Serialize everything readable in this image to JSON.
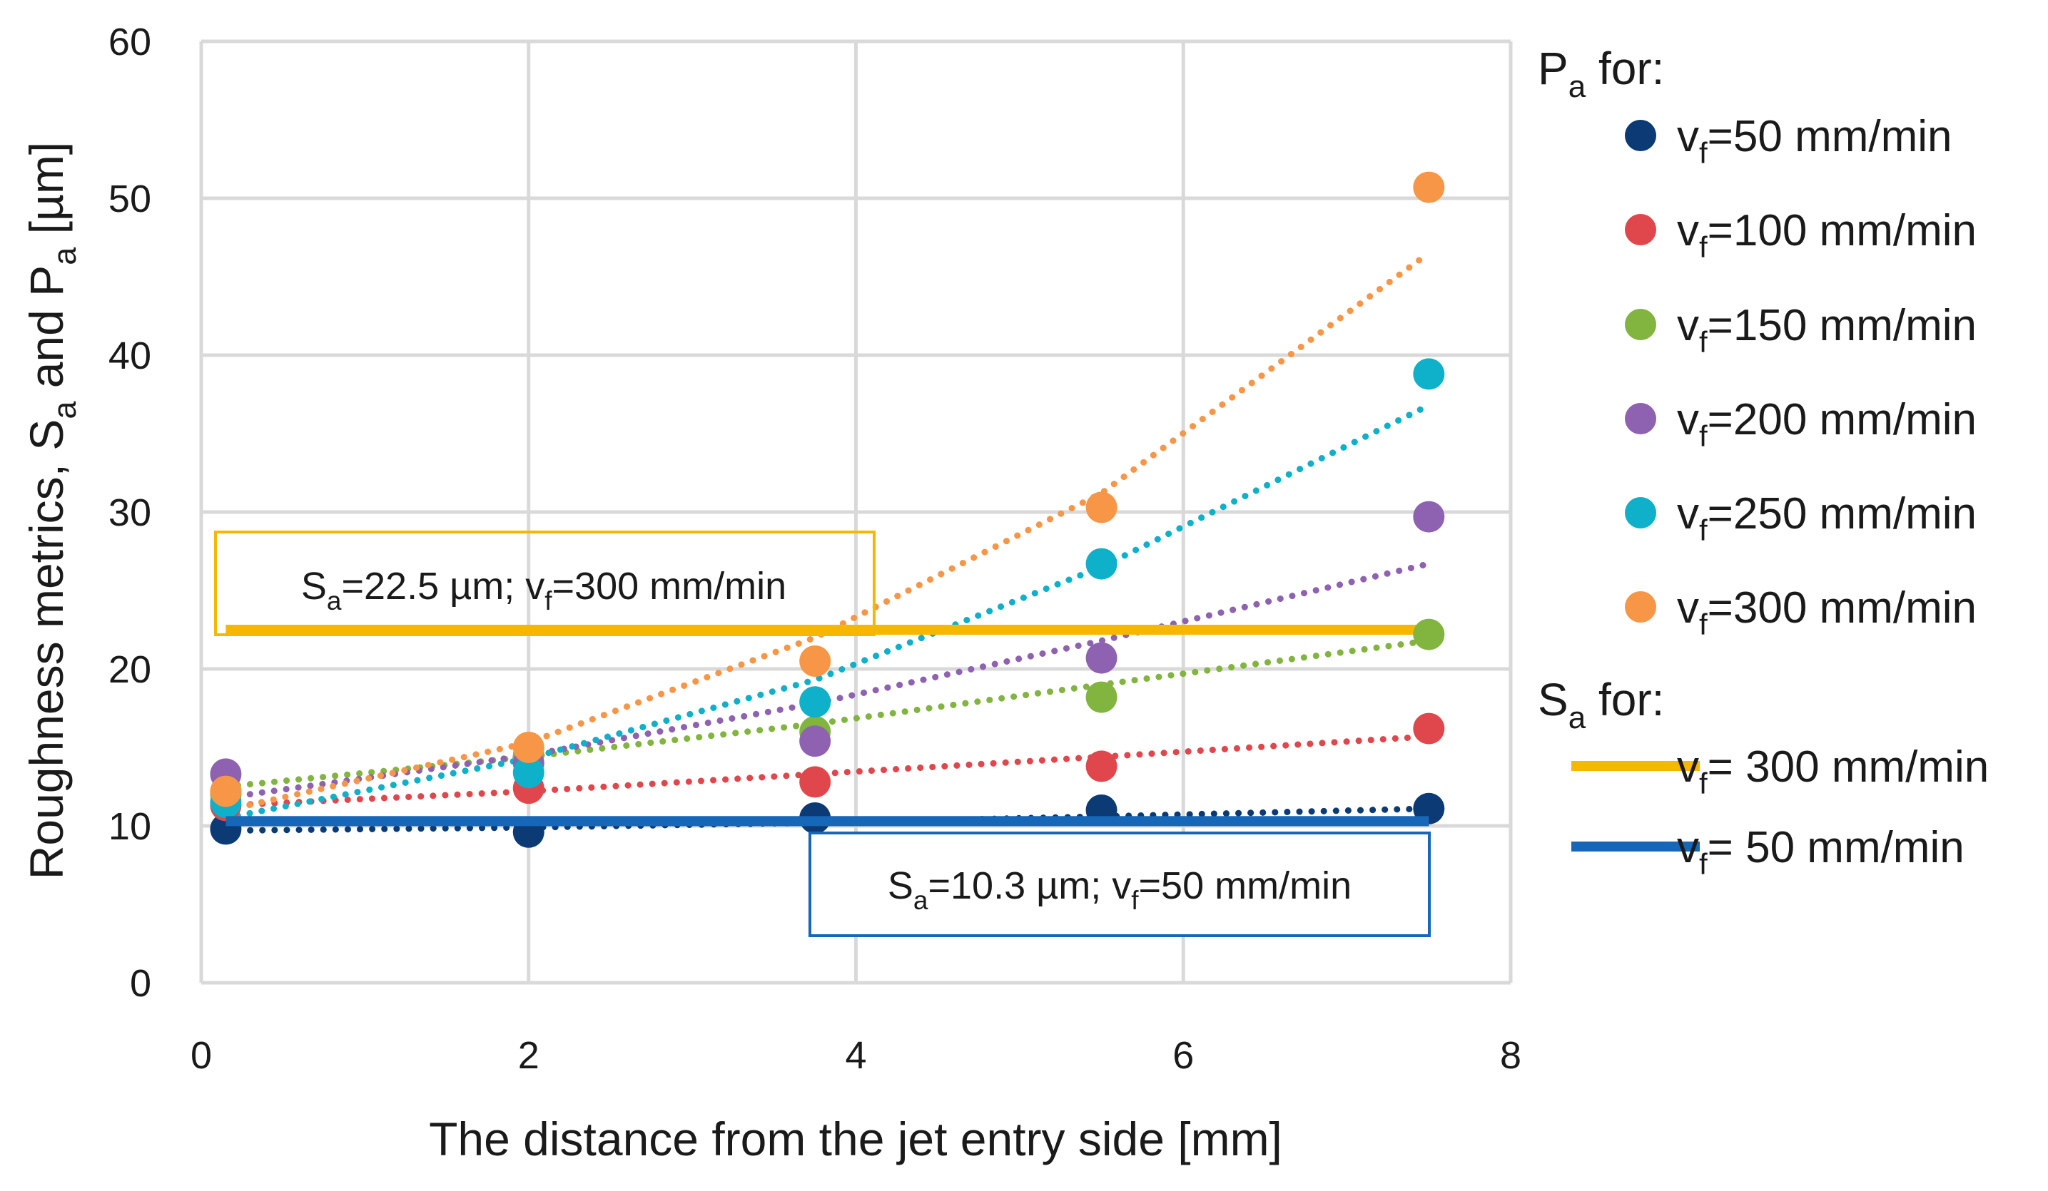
{
  "chart_data": {
    "type": "scatter",
    "xlabel": "The distance from the jet entry side [mm]",
    "ylabel": {
      "main": "Roughness metrics, S",
      "sub1": "a",
      "mid": " and P",
      "sub2": "a",
      "unit": " [µm]"
    },
    "xlim": [
      0,
      8
    ],
    "ylim": [
      0,
      60
    ],
    "x_ticks": [
      "0",
      "2",
      "4",
      "6",
      "8"
    ],
    "y_ticks": [
      "0",
      "10",
      "20",
      "30",
      "40",
      "50",
      "60"
    ],
    "grid": true,
    "x": [
      0.15,
      2.0,
      3.75,
      5.5,
      7.5
    ],
    "series": [
      {
        "name": "vf=50 mm/min",
        "color": "#0b3a75",
        "values": [
          9.8,
          9.6,
          10.5,
          11.0,
          11.1
        ],
        "trend": [
          9.7,
          9.9,
          10.2,
          10.6,
          11.1
        ]
      },
      {
        "name": "vf=100 mm/min",
        "color": "#e0474c",
        "values": [
          11.3,
          12.4,
          12.8,
          13.8,
          16.2
        ],
        "trend": [
          11.3,
          12.2,
          13.3,
          14.4,
          15.7
        ]
      },
      {
        "name": "vf=150 mm/min",
        "color": "#82b440",
        "values": [
          12.0,
          14.5,
          16.0,
          18.2,
          22.2
        ],
        "trend": [
          12.5,
          14.4,
          16.5,
          19.0,
          21.8
        ]
      },
      {
        "name": "vf=200 mm/min",
        "color": "#8e62b0",
        "values": [
          13.3,
          14.0,
          15.4,
          20.7,
          29.7
        ],
        "trend": [
          11.8,
          14.5,
          17.8,
          21.8,
          26.7
        ]
      },
      {
        "name": "vf=250 mm/min",
        "color": "#0fb0c9",
        "values": [
          11.5,
          13.4,
          17.9,
          26.7,
          38.8
        ],
        "trend": [
          10.5,
          14.3,
          19.3,
          26.5,
          36.8
        ]
      },
      {
        "name": "vf=300 mm/min",
        "color": "#f79646",
        "values": [
          12.2,
          15.0,
          20.5,
          30.3,
          50.7
        ],
        "trend": [
          11.0,
          15.3,
          22.0,
          31.2,
          46.5
        ]
      }
    ],
    "reference_lines": [
      {
        "name": "vf= 300 mm/min",
        "y": 22.5,
        "x_range": [
          0.15,
          7.5
        ],
        "color": "#f5b800",
        "annotation": {
          "pre": "S",
          "sub1": "a",
          "mid": "=22.5 µm; v",
          "sub2": "f",
          "post": "=300 mm/min"
        }
      },
      {
        "name": "vf= 50 mm/min",
        "y": 10.3,
        "x_range": [
          0.15,
          7.5
        ],
        "color": "#1667b8",
        "annotation": {
          "pre": "S",
          "sub1": "a",
          "mid": "=10.3 µm; v",
          "sub2": "f",
          "post": "=50 mm/min"
        }
      }
    ],
    "legend": {
      "placement": "right",
      "pa_header": {
        "main": "P",
        "sub": "a",
        "post": " for:"
      },
      "sa_header": {
        "main": "S",
        "sub": "a",
        "post": " for:"
      },
      "pa_items": [
        {
          "pre": "v",
          "sub": "f",
          "post": "=50 mm/min"
        },
        {
          "pre": "v",
          "sub": "f",
          "post": "=100 mm/min"
        },
        {
          "pre": "v",
          "sub": "f",
          "post": "=150 mm/min"
        },
        {
          "pre": "v",
          "sub": "f",
          "post": "=200 mm/min"
        },
        {
          "pre": "v",
          "sub": "f",
          "post": "=250 mm/min"
        },
        {
          "pre": "v",
          "sub": "f",
          "post": "=300 mm/min"
        }
      ],
      "sa_items": [
        {
          "pre": "v",
          "sub": "f",
          "post": "= 300 mm/min"
        },
        {
          "pre": "v",
          "sub": "f",
          "post": "= 50 mm/min"
        }
      ]
    }
  }
}
